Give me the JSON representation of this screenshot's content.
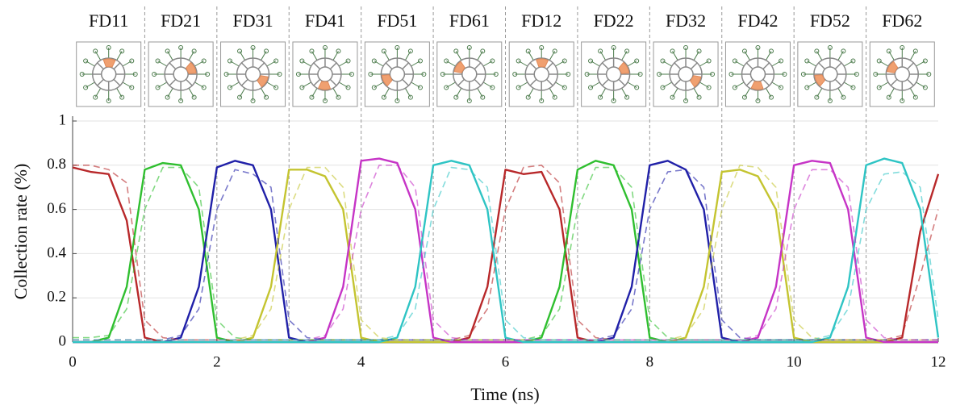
{
  "chart_data": {
    "type": "line",
    "panel_labels": [
      "FD11",
      "FD21",
      "FD31",
      "FD41",
      "FD51",
      "FD61",
      "FD12",
      "FD22",
      "FD32",
      "FD42",
      "FD52",
      "FD62"
    ],
    "xlabel": "Time (ns)",
    "ylabel": "Collection rate (%)",
    "xlim": [
      0,
      12
    ],
    "ylim": [
      0,
      1
    ],
    "xticks": [
      0,
      2,
      4,
      6,
      8,
      10,
      12
    ],
    "yticks": [
      0,
      0.2,
      0.4,
      0.6,
      0.8,
      1
    ],
    "grid": true,
    "x": [
      0,
      0.25,
      0.5,
      0.75,
      1,
      1.25,
      1.5,
      1.75,
      2,
      2.25,
      2.5,
      2.75,
      3,
      3.25,
      3.5,
      3.75,
      4,
      4.25,
      4.5,
      4.75,
      5,
      5.25,
      5.5,
      5.75,
      6,
      6.25,
      6.5,
      6.75,
      7,
      7.25,
      7.5,
      7.75,
      8,
      8.25,
      8.5,
      8.75,
      9,
      9.25,
      9.5,
      9.75,
      10,
      10.25,
      10.5,
      10.75,
      11,
      11.25,
      11.5,
      11.75,
      12
    ],
    "series": [
      {
        "color": "#b8282a",
        "dashed": false,
        "values": [
          0.79,
          0.77,
          0.76,
          0.55,
          0.02,
          0,
          0,
          0,
          0,
          0,
          0,
          0,
          0,
          0,
          0,
          0,
          0,
          0,
          0,
          0,
          0,
          0,
          0.02,
          0.25,
          0.78,
          0.76,
          0.77,
          0.6,
          0.02,
          0,
          0,
          0,
          0,
          0,
          0,
          0,
          0,
          0,
          0,
          0,
          0,
          0,
          0,
          0,
          0,
          0,
          0.02,
          0.5,
          0.76
        ]
      },
      {
        "color": "#2fbf2f",
        "dashed": false,
        "values": [
          0,
          0,
          0.02,
          0.25,
          0.78,
          0.81,
          0.8,
          0.6,
          0.02,
          0,
          0,
          0,
          0,
          0,
          0,
          0,
          0,
          0,
          0,
          0,
          0,
          0,
          0,
          0,
          0,
          0,
          0.02,
          0.25,
          0.78,
          0.82,
          0.8,
          0.6,
          0.02,
          0,
          0,
          0,
          0,
          0,
          0,
          0,
          0,
          0,
          0,
          0,
          0,
          0,
          0,
          0,
          0
        ]
      },
      {
        "color": "#2020a8",
        "dashed": false,
        "values": [
          0,
          0,
          0,
          0,
          0,
          0,
          0.02,
          0.25,
          0.79,
          0.82,
          0.8,
          0.6,
          0.02,
          0,
          0,
          0,
          0,
          0,
          0,
          0,
          0,
          0,
          0,
          0,
          0,
          0,
          0,
          0,
          0,
          0,
          0.02,
          0.25,
          0.8,
          0.82,
          0.78,
          0.6,
          0.02,
          0,
          0,
          0,
          0,
          0,
          0,
          0,
          0,
          0,
          0,
          0,
          0
        ]
      },
      {
        "color": "#c4c430",
        "dashed": false,
        "values": [
          0,
          0,
          0,
          0,
          0,
          0,
          0,
          0,
          0,
          0,
          0.02,
          0.25,
          0.78,
          0.78,
          0.75,
          0.6,
          0.02,
          0,
          0,
          0,
          0,
          0,
          0,
          0,
          0,
          0,
          0,
          0,
          0,
          0,
          0,
          0,
          0,
          0,
          0.02,
          0.25,
          0.77,
          0.78,
          0.75,
          0.6,
          0.02,
          0,
          0,
          0,
          0,
          0,
          0,
          0,
          0
        ]
      },
      {
        "color": "#c634c6",
        "dashed": false,
        "values": [
          0,
          0,
          0,
          0,
          0,
          0,
          0,
          0,
          0,
          0,
          0,
          0,
          0,
          0,
          0.02,
          0.25,
          0.82,
          0.83,
          0.81,
          0.6,
          0.02,
          0,
          0,
          0,
          0,
          0,
          0,
          0,
          0,
          0,
          0,
          0,
          0,
          0,
          0,
          0,
          0,
          0,
          0.02,
          0.25,
          0.8,
          0.82,
          0.81,
          0.6,
          0.02,
          0,
          0,
          0,
          0
        ]
      },
      {
        "color": "#2ec4c4",
        "dashed": false,
        "values": [
          0,
          0,
          0,
          0,
          0,
          0,
          0,
          0,
          0,
          0,
          0,
          0,
          0,
          0,
          0,
          0,
          0,
          0,
          0.02,
          0.25,
          0.8,
          0.82,
          0.8,
          0.6,
          0.02,
          0,
          0,
          0,
          0,
          0,
          0,
          0,
          0,
          0,
          0,
          0,
          0,
          0,
          0,
          0,
          0,
          0,
          0.02,
          0.25,
          0.8,
          0.83,
          0.81,
          0.6,
          0.02
        ]
      },
      {
        "color": "#b8282a",
        "dashed": true,
        "values": [
          0.8,
          0.8,
          0.78,
          0.72,
          0.1,
          0.02,
          0.01,
          0.01,
          0.01,
          0.01,
          0.01,
          0.01,
          0.01,
          0.01,
          0.01,
          0.01,
          0.01,
          0.01,
          0.01,
          0.01,
          0.01,
          0.01,
          0.03,
          0.15,
          0.6,
          0.79,
          0.8,
          0.72,
          0.1,
          0.02,
          0.01,
          0.01,
          0.01,
          0.01,
          0.01,
          0.01,
          0.01,
          0.01,
          0.01,
          0.01,
          0.01,
          0.01,
          0.01,
          0.01,
          0.01,
          0.01,
          0.03,
          0.3,
          0.6
        ]
      },
      {
        "color": "#2fbf2f",
        "dashed": true,
        "values": [
          0.02,
          0.02,
          0.03,
          0.15,
          0.6,
          0.79,
          0.79,
          0.7,
          0.1,
          0.02,
          0.01,
          0.01,
          0.01,
          0.01,
          0.01,
          0.01,
          0.01,
          0.01,
          0.01,
          0.01,
          0.01,
          0.01,
          0.01,
          0.01,
          0.01,
          0.01,
          0.03,
          0.15,
          0.6,
          0.79,
          0.79,
          0.7,
          0.1,
          0.02,
          0.01,
          0.01,
          0.01,
          0.01,
          0.01,
          0.01,
          0.01,
          0.01,
          0.01,
          0.01,
          0.01,
          0.01,
          0.01,
          0.01,
          0.01
        ]
      },
      {
        "color": "#2020a8",
        "dashed": true,
        "values": [
          0.01,
          0.01,
          0.01,
          0.01,
          0.01,
          0.01,
          0.03,
          0.15,
          0.6,
          0.78,
          0.76,
          0.7,
          0.1,
          0.02,
          0.01,
          0.01,
          0.01,
          0.01,
          0.01,
          0.01,
          0.01,
          0.01,
          0.01,
          0.01,
          0.01,
          0.01,
          0.01,
          0.01,
          0.01,
          0.01,
          0.03,
          0.15,
          0.6,
          0.77,
          0.78,
          0.7,
          0.1,
          0.02,
          0.01,
          0.01,
          0.01,
          0.01,
          0.01,
          0.01,
          0.01,
          0.01,
          0.01,
          0.01,
          0.01
        ]
      },
      {
        "color": "#c4c430",
        "dashed": true,
        "values": [
          0.01,
          0.01,
          0.01,
          0.01,
          0.01,
          0.01,
          0.01,
          0.01,
          0.01,
          0.01,
          0.03,
          0.15,
          0.6,
          0.79,
          0.79,
          0.7,
          0.1,
          0.02,
          0.01,
          0.01,
          0.01,
          0.01,
          0.01,
          0.01,
          0.01,
          0.01,
          0.01,
          0.01,
          0.01,
          0.01,
          0.01,
          0.01,
          0.01,
          0.01,
          0.03,
          0.15,
          0.6,
          0.8,
          0.79,
          0.7,
          0.1,
          0.02,
          0.01,
          0.01,
          0.01,
          0.01,
          0.01,
          0.01,
          0.01
        ]
      },
      {
        "color": "#c634c6",
        "dashed": true,
        "values": [
          0.01,
          0.01,
          0.01,
          0.01,
          0.01,
          0.01,
          0.01,
          0.01,
          0.01,
          0.01,
          0.01,
          0.01,
          0.01,
          0.01,
          0.03,
          0.15,
          0.6,
          0.8,
          0.8,
          0.7,
          0.1,
          0.02,
          0.01,
          0.01,
          0.01,
          0.01,
          0.01,
          0.01,
          0.01,
          0.01,
          0.01,
          0.01,
          0.01,
          0.01,
          0.01,
          0.01,
          0.01,
          0.01,
          0.03,
          0.15,
          0.6,
          0.78,
          0.78,
          0.7,
          0.1,
          0.02,
          0.01,
          0.01,
          0.01
        ]
      },
      {
        "color": "#2ec4c4",
        "dashed": true,
        "values": [
          0.01,
          0.01,
          0.01,
          0.01,
          0.01,
          0.01,
          0.01,
          0.01,
          0.01,
          0.01,
          0.01,
          0.01,
          0.01,
          0.01,
          0.01,
          0.01,
          0.01,
          0.01,
          0.03,
          0.15,
          0.6,
          0.79,
          0.78,
          0.7,
          0.1,
          0.02,
          0.01,
          0.01,
          0.01,
          0.01,
          0.01,
          0.01,
          0.01,
          0.01,
          0.01,
          0.01,
          0.01,
          0.01,
          0.01,
          0.01,
          0.01,
          0.01,
          0.03,
          0.15,
          0.6,
          0.76,
          0.77,
          0.7,
          0.1
        ]
      }
    ]
  }
}
